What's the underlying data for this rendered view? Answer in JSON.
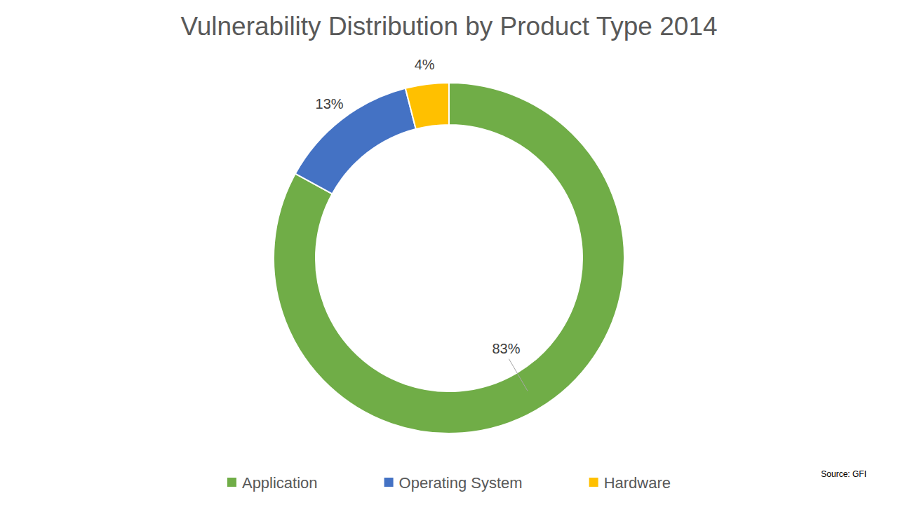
{
  "chart_data": {
    "type": "pie",
    "title": "Vulnerability Distribution by Product Type 2014",
    "source": "Source: GFI",
    "categories": [
      "Application",
      "Operating System",
      "Hardware"
    ],
    "values": [
      83,
      13,
      4
    ],
    "value_labels": [
      "83%",
      "13%",
      "4%"
    ],
    "colors": [
      "#70ad47",
      "#4472c4",
      "#ffc000"
    ],
    "data_labels": true,
    "legend": "bottom"
  }
}
